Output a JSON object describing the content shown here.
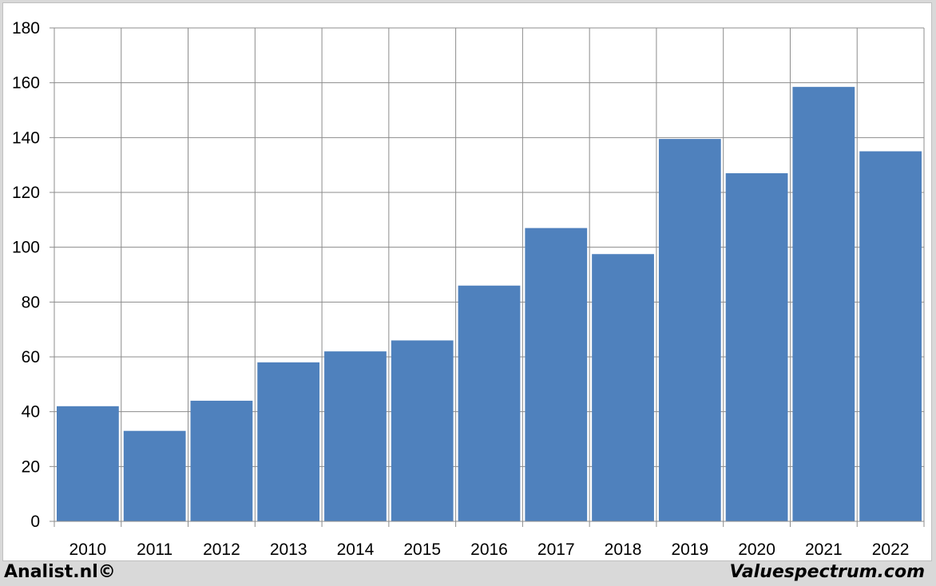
{
  "footer": {
    "left_credit": "Analist.nl©",
    "right_credit": "Valuespectrum.com"
  },
  "colors": {
    "bar": "#4f81bd",
    "grid": "#8c8c8c",
    "background": "#ffffff"
  },
  "chart_data": {
    "type": "bar",
    "title": "",
    "xlabel": "",
    "ylabel": "",
    "categories": [
      "2010",
      "2011",
      "2012",
      "2013",
      "2014",
      "2015",
      "2016",
      "2017",
      "2018",
      "2019",
      "2020",
      "2021",
      "2022"
    ],
    "values": [
      42,
      33,
      44,
      58,
      62,
      66,
      86,
      107,
      97.5,
      139.5,
      127,
      158.5,
      135
    ],
    "ylim": [
      0,
      180
    ],
    "yticks": [
      0,
      20,
      40,
      60,
      80,
      100,
      120,
      140,
      160,
      180
    ],
    "grid": true,
    "legend": "none"
  }
}
